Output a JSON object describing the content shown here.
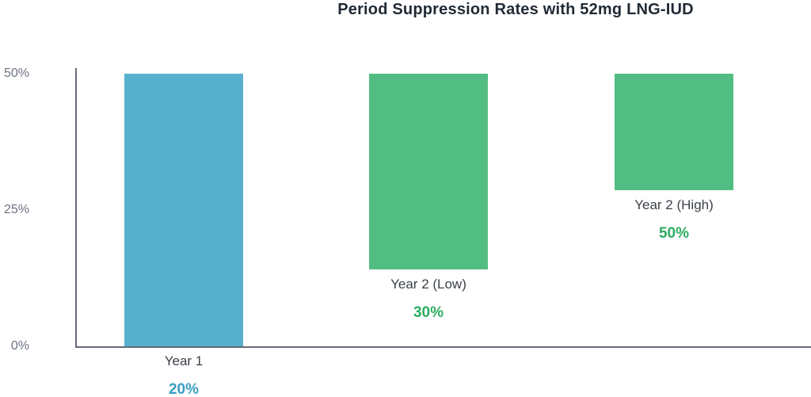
{
  "chart_data": {
    "type": "bar",
    "title": "Period Suppression Rates with 52mg LNG-IUD",
    "categories": [
      "Year 1",
      "Year 2 (Low)",
      "Year 2 (High)"
    ],
    "values": [
      20,
      30,
      50
    ],
    "value_labels": [
      "20%",
      "30%",
      "50%"
    ],
    "xlabel": "",
    "ylabel": "",
    "ylim": [
      0,
      50
    ],
    "grid": "off",
    "legend": "none",
    "note": "Bars are rendered hanging down from the 50% line; each bar's labeled value appears beneath it.",
    "yticks": [
      {
        "label": "0%",
        "pct": 0
      },
      {
        "label": "25%",
        "pct": 25
      },
      {
        "label": "50%",
        "pct": 50
      }
    ],
    "bars": [
      {
        "category": "Year 1",
        "value": 20,
        "value_label": "20%",
        "bar_color": "#57b0cd",
        "value_color": "#3b9ec2",
        "drawn_top_pct": 50,
        "drawn_bottom_pct": 0
      },
      {
        "category": "Year 2 (Low)",
        "value": 30,
        "value_label": "30%",
        "bar_color": "#52bd82",
        "value_color": "#2bad5f",
        "drawn_top_pct": 50,
        "drawn_bottom_pct": 14.1
      },
      {
        "category": "Year 2 (High)",
        "value": 50,
        "value_label": "50%",
        "bar_color": "#52bd82",
        "value_color": "#2bad5f",
        "drawn_top_pct": 50,
        "drawn_bottom_pct": 28.6
      }
    ]
  },
  "colors": {
    "title": "#212b36",
    "axis_line": "#646a78",
    "tick_label": "#6b7280",
    "category_label": "#3c4149",
    "blue_bar": "#57b0cd",
    "blue_value": "#3b9ec2",
    "green_bar": "#52bd82",
    "green_value": "#2bad5f"
  }
}
